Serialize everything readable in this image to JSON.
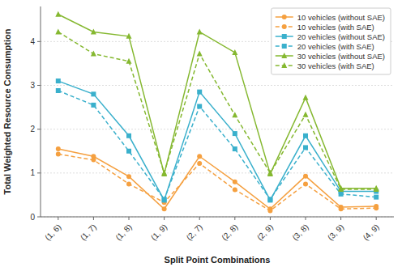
{
  "chart_data": {
    "type": "line",
    "categories": [
      "(1, 6)",
      "(1, 7)",
      "(1, 8)",
      "(1, 9)",
      "(2, 7)",
      "(2, 8)",
      "(2, 9)",
      "(3, 8)",
      "(3, 9)",
      "(4, 9)"
    ],
    "series": [
      {
        "name": "10 vehicles (without SAE)",
        "color": "#f5a040",
        "marker": "circle",
        "line_style": "solid",
        "values": [
          1.55,
          1.38,
          0.92,
          0.18,
          1.38,
          0.8,
          0.18,
          0.93,
          0.22,
          0.24
        ]
      },
      {
        "name": "10 vehicles (with SAE)",
        "color": "#f5a040",
        "marker": "circle",
        "line_style": "dashed",
        "values": [
          1.43,
          1.3,
          0.75,
          0.33,
          1.22,
          0.62,
          0.14,
          0.75,
          0.18,
          0.2
        ]
      },
      {
        "name": "20 vehicles (without SAE)",
        "color": "#3ab0cc",
        "marker": "square",
        "line_style": "solid",
        "values": [
          3.1,
          2.8,
          1.85,
          0.38,
          2.85,
          1.9,
          0.38,
          1.85,
          0.58,
          0.58
        ]
      },
      {
        "name": "20 vehicles (with SAE)",
        "color": "#3ab0cc",
        "marker": "square",
        "line_style": "dashed",
        "values": [
          2.88,
          2.55,
          1.5,
          0.4,
          2.52,
          1.55,
          0.4,
          1.58,
          0.52,
          0.45
        ]
      },
      {
        "name": "30 vehicles (without SAE)",
        "color": "#85b830",
        "marker": "triangle",
        "line_style": "solid",
        "values": [
          4.62,
          4.22,
          4.12,
          0.98,
          4.22,
          3.75,
          0.98,
          2.72,
          0.65,
          0.65
        ]
      },
      {
        "name": "30 vehicles (with SAE)",
        "color": "#85b830",
        "marker": "triangle",
        "line_style": "dashed",
        "values": [
          4.22,
          3.72,
          3.55,
          1.0,
          3.72,
          2.32,
          1.0,
          2.33,
          0.63,
          0.63
        ]
      }
    ],
    "x_label": "Split Point Combinations",
    "y_label": "Total Weighted Resource Consumption",
    "ylim": [
      0,
      4.8
    ],
    "yticks": [
      0,
      1,
      2,
      3,
      4
    ],
    "grid": true,
    "legend": "upper right"
  }
}
